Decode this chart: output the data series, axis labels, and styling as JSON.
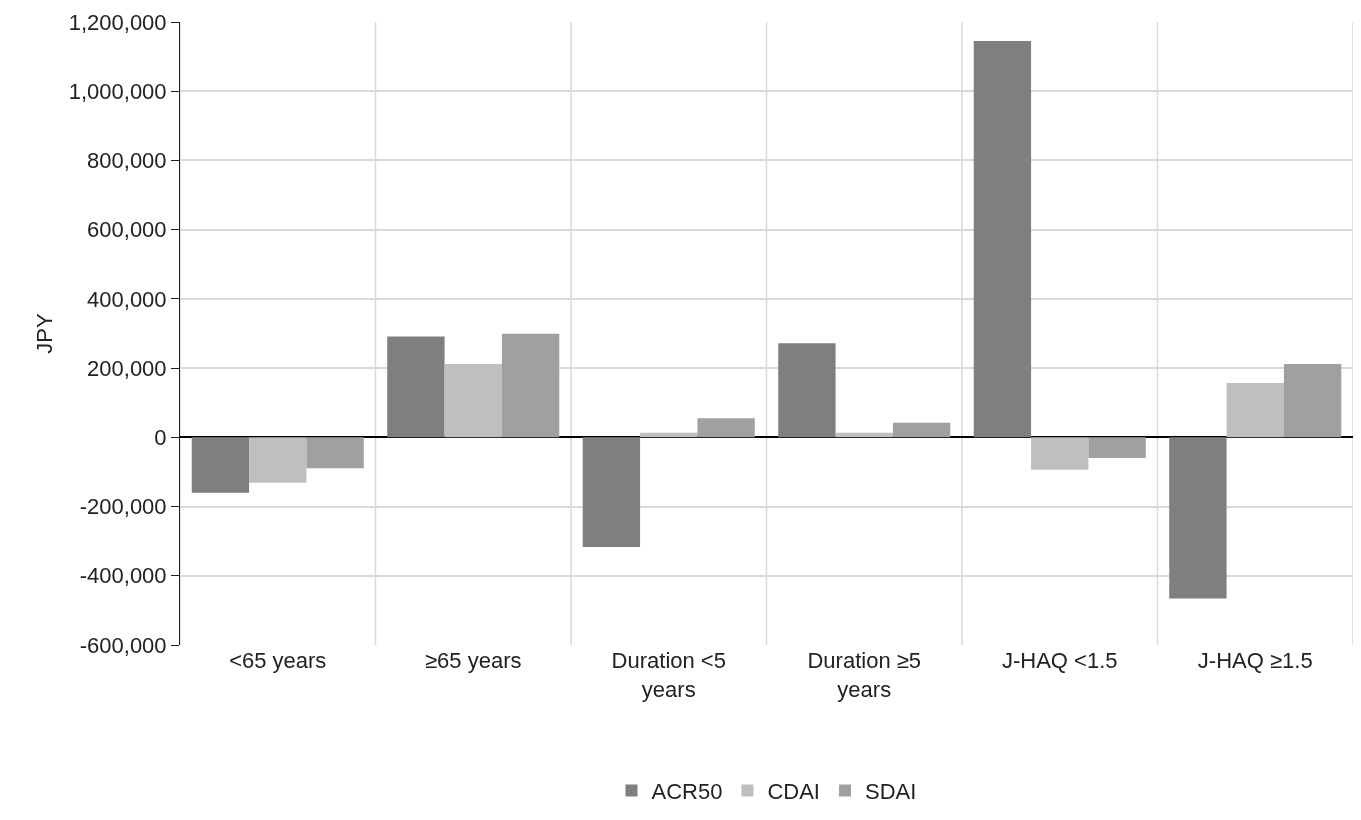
{
  "chart_data": {
    "type": "bar",
    "ylabel": "JPY",
    "categories": [
      "<65 years",
      "≥65 years",
      "Duration <5 years",
      "Duration ≥5 years",
      "J-HAQ <1.5",
      "J-HAQ ≥1.5"
    ],
    "series": [
      {
        "name": "ACR50",
        "color": "#7f7f7f",
        "values": [
          -160000,
          291000,
          -317000,
          272000,
          1145000,
          -466000
        ]
      },
      {
        "name": "CDAI",
        "color": "#bfbfbf",
        "values": [
          -131000,
          212000,
          13000,
          13000,
          -94000,
          157000
        ]
      },
      {
        "name": "SDAI",
        "color": "#a0a0a0",
        "values": [
          -89000,
          299000,
          55000,
          42000,
          -60000,
          212000
        ]
      }
    ],
    "ylim": [
      -600000,
      1200000
    ],
    "yticks": [
      {
        "value": -600000,
        "label": "-600,000"
      },
      {
        "value": -400000,
        "label": "-400,000"
      },
      {
        "value": -200000,
        "label": "-200,000"
      },
      {
        "value": 0,
        "label": "0"
      },
      {
        "value": 200000,
        "label": "200,000"
      },
      {
        "value": 400000,
        "label": "400,000"
      },
      {
        "value": 600000,
        "label": "600,000"
      },
      {
        "value": 800000,
        "label": "800,000"
      },
      {
        "value": 1000000,
        "label": "1,000,000"
      },
      {
        "value": 1200000,
        "label": "1,200,000"
      }
    ],
    "grid": true,
    "legend": "bottom"
  }
}
